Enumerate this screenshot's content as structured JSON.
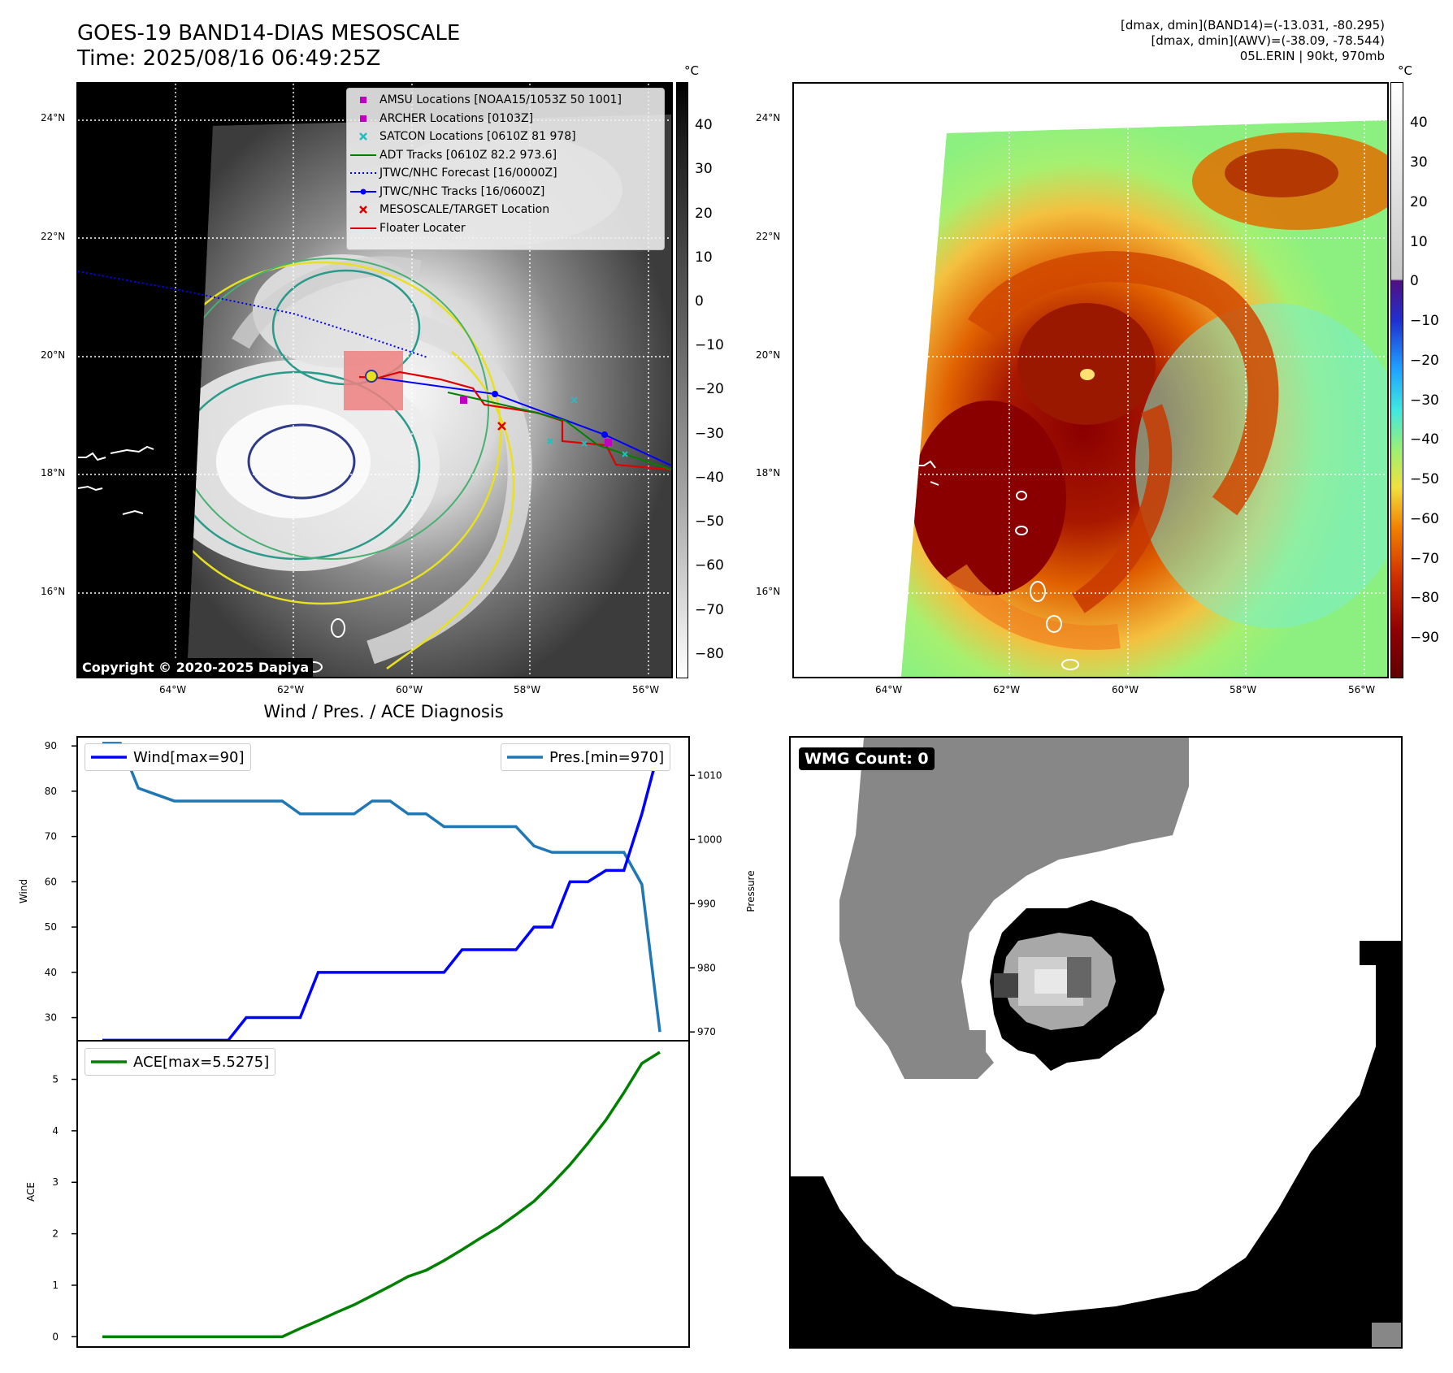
{
  "header": {
    "title_line1": "GOES-19 BAND14-DIAS MESOSCALE",
    "title_line2": "Time: 2025/08/16 06:49:25Z",
    "stats_line1": "[dmax, dmin](BAND14)=(-13.031, -80.295)",
    "stats_line2": "[dmax, dmin](AWV)=(-38.09, -78.544)",
    "stats_line3": "05L.ERIN | 90kt, 970mb"
  },
  "map_axes": {
    "lat_labels": [
      "24°N",
      "22°N",
      "20°N",
      "18°N",
      "16°N"
    ],
    "lon_labels": [
      "64°W",
      "62°W",
      "60°W",
      "58°W",
      "56°W"
    ]
  },
  "ir_panel": {
    "legend": [
      {
        "label": "AMSU Locations [NOAA15/1053Z 50 1001]",
        "symbol": "square",
        "color": "#c000c0"
      },
      {
        "label": "ARCHER Locations [0103Z]",
        "symbol": "square",
        "color": "#c000c0"
      },
      {
        "label": "SATCON Locations [0610Z 81 978]",
        "symbol": "x",
        "color": "#20c0c0"
      },
      {
        "label": "ADT Tracks [0610Z 82.2 973.6]",
        "symbol": "line",
        "color": "#008000"
      },
      {
        "label": "JTWC/NHC Forecast [16/0000Z]",
        "symbol": "dotted",
        "color": "#0000ff"
      },
      {
        "label": "JTWC/NHC Tracks [16/0600Z]",
        "symbol": "line-dot",
        "color": "#0000ff"
      },
      {
        "label": "MESOSCALE/TARGET Location",
        "symbol": "x",
        "color": "#e00000"
      },
      {
        "label": "Floater Locater",
        "symbol": "line",
        "color": "#e00000"
      }
    ],
    "copyright": "Copyright © 2020-2025 Dapiya",
    "colorbar_unit": "°C",
    "colorbar_ticks": [
      "40",
      "30",
      "20",
      "10",
      "0",
      "−10",
      "−20",
      "−30",
      "−40",
      "−50",
      "−60",
      "−70",
      "−80"
    ]
  },
  "awv_panel": {
    "colorbar_unit": "°C",
    "colorbar_ticks": [
      "40",
      "30",
      "20",
      "10",
      "0",
      "−10",
      "−20",
      "−30",
      "−40",
      "−50",
      "−60",
      "−70",
      "−80",
      "−90"
    ]
  },
  "diag_title": "Wind / Pres. / ACE Diagnosis",
  "wmg_label": "WMG Count: 0",
  "chart_data": [
    {
      "type": "line",
      "title": "Wind / Pres. / ACE Diagnosis",
      "xlabel": "",
      "ylabel": "Wind",
      "ylabel_right": "Pressure",
      "ylim": [
        24,
        92
      ],
      "ylim_right": [
        968,
        1016
      ],
      "yticks": [
        30,
        40,
        50,
        60,
        70,
        80,
        90
      ],
      "yticks_right": [
        970,
        980,
        990,
        1000,
        1010
      ],
      "x": [
        0,
        1,
        2,
        3,
        4,
        5,
        6,
        7,
        8,
        9,
        10,
        11,
        12,
        13,
        14,
        15,
        16,
        17,
        18,
        19,
        20,
        21,
        22,
        23,
        24,
        25,
        26,
        27,
        28,
        29,
        30,
        31
      ],
      "series": [
        {
          "name": "Wind[max=90]",
          "axis": "left",
          "color": "#0000ff",
          "values": [
            25,
            25,
            25,
            25,
            25,
            25,
            25,
            25,
            30,
            30,
            30,
            30,
            40,
            40,
            40,
            40,
            40,
            40,
            40,
            40,
            45,
            45,
            45,
            45,
            50,
            50,
            60,
            60,
            62.5,
            62.5,
            75,
            90
          ]
        },
        {
          "name": "Pres.[min=970]",
          "axis": "right",
          "color": "#1f77b4",
          "values": [
            1015,
            1015,
            1008,
            1007,
            1006,
            1006,
            1006,
            1006,
            1006,
            1006,
            1006,
            1004,
            1004,
            1004,
            1004,
            1006,
            1006,
            1004,
            1004,
            1002,
            1002,
            1002,
            1002,
            1002,
            999,
            998,
            998,
            998,
            998,
            998,
            993,
            970
          ]
        }
      ]
    },
    {
      "type": "line",
      "xlabel": "",
      "ylabel": "ACE",
      "ylim": [
        -0.2,
        5.75
      ],
      "yticks": [
        0,
        1,
        2,
        3,
        4,
        5
      ],
      "x": [
        0,
        1,
        2,
        3,
        4,
        5,
        6,
        7,
        8,
        9,
        10,
        11,
        12,
        13,
        14,
        15,
        16,
        17,
        18,
        19,
        20,
        21,
        22,
        23,
        24,
        25,
        26,
        27,
        28,
        29,
        30,
        31
      ],
      "series": [
        {
          "name": "ACE[max=5.5275]",
          "color": "#008000",
          "values": [
            0,
            0,
            0,
            0,
            0,
            0,
            0,
            0,
            0,
            0,
            0,
            0.16,
            0.31,
            0.47,
            0.62,
            0.8,
            0.98,
            1.17,
            1.29,
            1.48,
            1.69,
            1.91,
            2.12,
            2.37,
            2.63,
            2.97,
            3.34,
            3.76,
            4.21,
            4.74,
            5.31,
            5.5275
          ]
        }
      ]
    }
  ]
}
